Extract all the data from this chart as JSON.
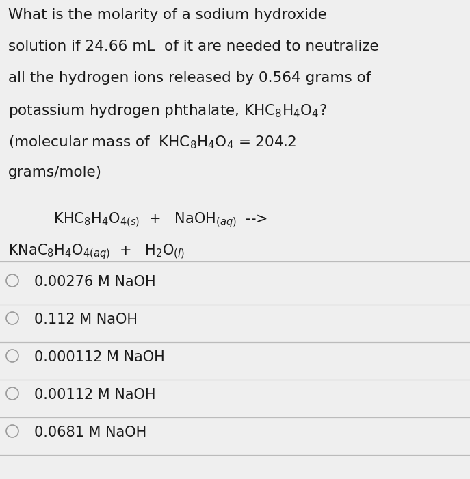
{
  "background_color": "#efefef",
  "question_lines": [
    "What is the molarity of a sodium hydroxide",
    "solution if 24.66 mL  of it are needed to neutralize",
    "all the hydrogen ions released by 0.564 grams of",
    "potassium hydrogen phthalate, KHC$_8$H$_4$O$_4$?",
    "(molecular mass of  KHC$_8$H$_4$O$_4$ = 204.2",
    "grams/mole)"
  ],
  "equation_line1": "    KHC$_8$H$_4$O$_{4(s)}$  +   NaOH$_{(aq)}$  -->",
  "equation_line2": "KNaC$_8$H$_4$O$_{4(aq)}$  +   H$_2$O$_{(l)}$",
  "choices": [
    "0.00276 M NaOH",
    "0.112 M NaOH",
    "0.000112 M NaOH",
    "0.00112 M NaOH",
    "0.0681 M NaOH"
  ],
  "text_color": "#1a1a1a",
  "line_color": "#bbbbbb",
  "font_size_question": 15.5,
  "font_size_equation": 15.0,
  "font_size_choices": 15.0,
  "circle_color": "#999999",
  "fig_width": 6.87,
  "fig_height": 7.0,
  "dpi": 100
}
